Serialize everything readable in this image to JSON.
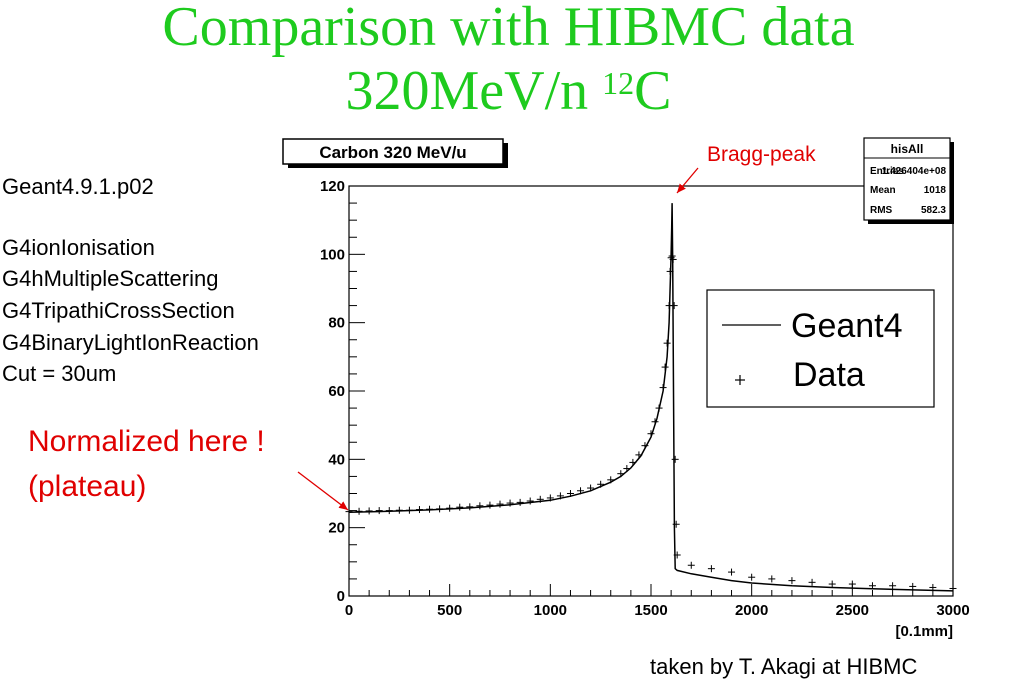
{
  "slide": {
    "title_line1": "Comparison with HIBMC data",
    "title_line2_main": "320MeV/n ",
    "title_line2_sup": "12",
    "title_line2_end": "C",
    "title_color": "#1ecb1e",
    "setup_lines": [
      "Geant4.9.1.p02",
      "G4ionIonisation",
      "G4hMultipleScattering",
      "G4TripathiCrossSection",
      "G4BinaryLightIonReaction",
      "Cut = 30um"
    ],
    "normalized_line1": "Normalized here !",
    "normalized_line2": "(plateau)",
    "bragg_label": "Bragg-peak",
    "annotation_color": "#e00000",
    "credit": "taken by T. Akagi at HIBMC"
  },
  "chart_data": {
    "type": "line",
    "title": "Carbon 320 MeV/u",
    "xlabel": "[0.1mm]",
    "ylabel": "",
    "xlim": [
      0,
      3000
    ],
    "ylim": [
      0,
      120
    ],
    "x_ticks": [
      0,
      500,
      1000,
      1500,
      2000,
      2500,
      3000
    ],
    "y_ticks": [
      0,
      20,
      40,
      60,
      80,
      100,
      120
    ],
    "grid": false,
    "legend": {
      "position": "right",
      "entries": [
        "Geant4",
        "Data"
      ]
    },
    "stats_box": {
      "name": "hisAll",
      "rows": [
        {
          "label": "Entries",
          "value": "1.426404e+08"
        },
        {
          "label": "Mean",
          "value": "1018"
        },
        {
          "label": "RMS",
          "value": "582.3"
        }
      ]
    },
    "series": [
      {
        "name": "Geant4",
        "style": "line",
        "x": [
          0,
          200,
          400,
          600,
          800,
          1000,
          1100,
          1200,
          1300,
          1350,
          1400,
          1450,
          1500,
          1530,
          1560,
          1580,
          1590,
          1595,
          1600,
          1603,
          1605,
          1608,
          1612,
          1616,
          1620,
          1630,
          1700,
          1800,
          1900,
          2000,
          2200,
          2400,
          2600,
          2800,
          3000
        ],
        "y": [
          24.5,
          24.8,
          25.2,
          25.8,
          26.7,
          28.0,
          29.2,
          30.8,
          33.3,
          35.0,
          37.5,
          41.0,
          46.5,
          52.0,
          60.0,
          70.0,
          80.0,
          90.0,
          100.0,
          108.0,
          115.0,
          98.0,
          60.0,
          20.0,
          8.0,
          7.5,
          6.5,
          5.5,
          4.5,
          3.8,
          3.0,
          2.5,
          2.1,
          1.8,
          1.5
        ]
      },
      {
        "name": "Data",
        "style": "marker",
        "x": [
          0,
          50,
          100,
          150,
          200,
          250,
          300,
          350,
          400,
          450,
          500,
          550,
          600,
          650,
          700,
          750,
          800,
          850,
          900,
          950,
          1000,
          1050,
          1100,
          1150,
          1200,
          1250,
          1300,
          1350,
          1380,
          1410,
          1440,
          1470,
          1500,
          1520,
          1540,
          1560,
          1570,
          1580,
          1590,
          1595,
          1600,
          1605,
          1610,
          1615,
          1620,
          1625,
          1630,
          1700,
          1800,
          1900,
          2000,
          2100,
          2200,
          2300,
          2400,
          2500,
          2600,
          2700,
          2800,
          2900,
          3000
        ],
        "y": [
          24.7,
          24.8,
          24.9,
          25.0,
          25.0,
          25.1,
          25.1,
          25.3,
          25.4,
          25.5,
          25.7,
          26.0,
          26.1,
          26.4,
          26.6,
          26.9,
          27.2,
          27.4,
          27.8,
          28.3,
          28.7,
          29.3,
          30.0,
          30.8,
          31.6,
          32.7,
          34.0,
          35.8,
          37.3,
          39.1,
          41.3,
          44.0,
          47.5,
          51.0,
          55.0,
          61.0,
          67.0,
          74.0,
          85.0,
          95.0,
          99.0,
          99.5,
          98.5,
          85.0,
          40.0,
          21.0,
          12.0,
          9.0,
          8.0,
          7.0,
          5.5,
          5.0,
          4.5,
          4.0,
          3.5,
          3.5,
          3.0,
          3.0,
          2.8,
          2.5,
          2.2
        ]
      }
    ]
  }
}
